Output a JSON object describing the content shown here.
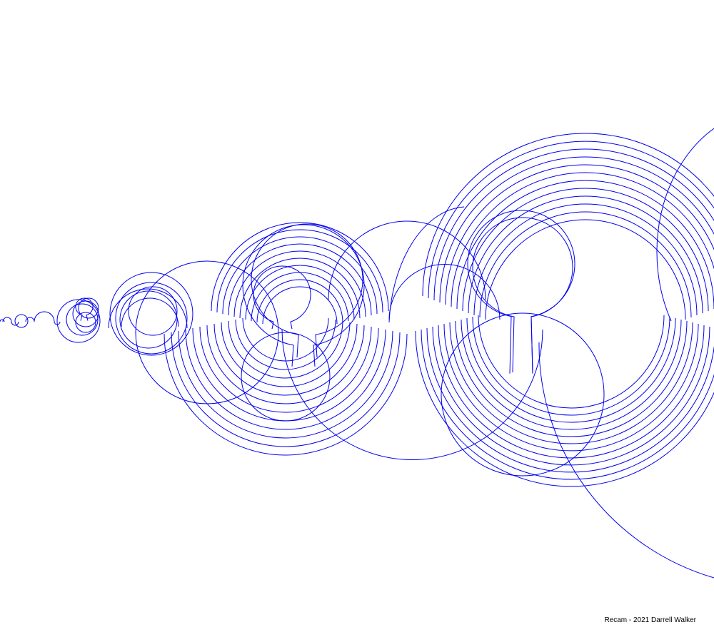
{
  "artwork": {
    "name": "Recam",
    "stroke_color": "#0000ee",
    "background_color": "#ffffff"
  },
  "caption": {
    "credit": "Recam - 2021 Darrell Walker"
  }
}
